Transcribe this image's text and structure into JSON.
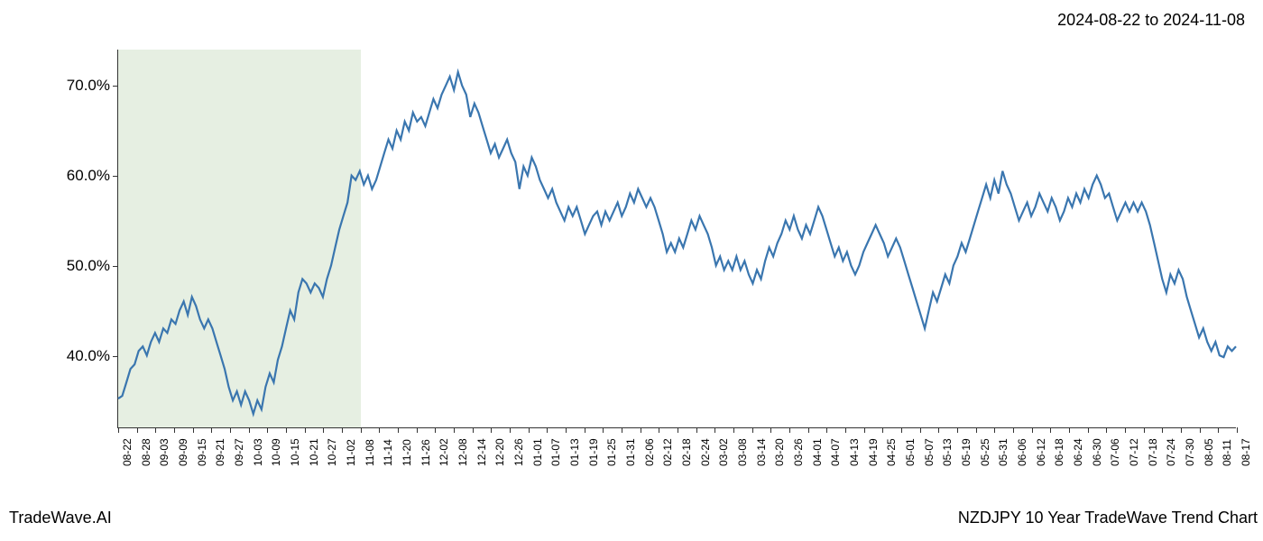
{
  "header": {
    "date_range": "2024-08-22 to 2024-11-08"
  },
  "footer": {
    "left": "TradeWave.AI",
    "right": "NZDJPY 10 Year TradeWave Trend Chart"
  },
  "chart": {
    "type": "line",
    "background_color": "#ffffff",
    "line_color": "#3a76af",
    "line_width": 2.2,
    "highlight": {
      "color": "#dce8d5",
      "opacity": 0.7,
      "x_start": "08-22",
      "x_end": "11-08"
    },
    "y_axis": {
      "min": 32,
      "max": 74,
      "ticks": [
        40.0,
        50.0,
        60.0,
        70.0
      ],
      "tick_labels": [
        "40.0%",
        "50.0%",
        "60.0%",
        "70.0%"
      ],
      "label_fontsize": 17
    },
    "x_axis": {
      "labels": [
        "08-22",
        "08-28",
        "09-03",
        "09-09",
        "09-15",
        "09-21",
        "09-27",
        "10-03",
        "10-09",
        "10-15",
        "10-21",
        "10-27",
        "11-02",
        "11-08",
        "11-14",
        "11-20",
        "11-26",
        "12-02",
        "12-08",
        "12-14",
        "12-20",
        "12-26",
        "01-01",
        "01-07",
        "01-13",
        "01-19",
        "01-25",
        "01-31",
        "02-06",
        "02-12",
        "02-18",
        "02-24",
        "03-02",
        "03-08",
        "03-14",
        "03-20",
        "03-26",
        "04-01",
        "04-07",
        "04-13",
        "04-19",
        "04-25",
        "05-01",
        "05-07",
        "05-13",
        "05-19",
        "05-25",
        "05-31",
        "06-06",
        "06-12",
        "06-18",
        "06-24",
        "06-30",
        "07-06",
        "07-12",
        "07-18",
        "07-24",
        "07-30",
        "08-05",
        "08-11",
        "08-17"
      ],
      "label_fontsize": 12,
      "rotation": -90
    },
    "data": [
      35.2,
      35.5,
      37.0,
      38.5,
      39.0,
      40.5,
      41.0,
      40.0,
      41.5,
      42.5,
      41.5,
      43.0,
      42.5,
      44.0,
      43.5,
      45.0,
      46.0,
      44.5,
      46.5,
      45.5,
      44.0,
      43.0,
      44.0,
      43.0,
      41.5,
      40.0,
      38.5,
      36.5,
      35.0,
      36.0,
      34.5,
      36.0,
      35.0,
      33.5,
      35.0,
      34.0,
      36.5,
      38.0,
      37.0,
      39.5,
      41.0,
      43.0,
      45.0,
      44.0,
      47.0,
      48.5,
      48.0,
      47.0,
      48.0,
      47.5,
      46.5,
      48.5,
      50.0,
      52.0,
      54.0,
      55.5,
      57.0,
      60.0,
      59.5,
      60.5,
      59.0,
      60.0,
      58.5,
      59.5,
      61.0,
      62.5,
      64.0,
      63.0,
      65.0,
      64.0,
      66.0,
      65.0,
      67.0,
      66.0,
      66.5,
      65.5,
      67.0,
      68.5,
      67.5,
      69.0,
      70.0,
      71.0,
      69.5,
      71.5,
      70.0,
      69.0,
      66.5,
      68.0,
      67.0,
      65.5,
      64.0,
      62.5,
      63.5,
      62.0,
      63.0,
      64.0,
      62.5,
      61.5,
      58.5,
      61.0,
      60.0,
      62.0,
      61.0,
      59.5,
      58.5,
      57.5,
      58.5,
      57.0,
      56.0,
      55.0,
      56.5,
      55.5,
      56.5,
      55.0,
      53.5,
      54.5,
      55.5,
      56.0,
      54.5,
      56.0,
      55.0,
      56.0,
      57.0,
      55.5,
      56.5,
      58.0,
      57.0,
      58.5,
      57.5,
      56.5,
      57.5,
      56.5,
      55.0,
      53.5,
      51.5,
      52.5,
      51.5,
      53.0,
      52.0,
      53.5,
      55.0,
      54.0,
      55.5,
      54.5,
      53.5,
      52.0,
      50.0,
      51.0,
      49.5,
      50.5,
      49.5,
      51.0,
      49.5,
      50.5,
      49.0,
      48.0,
      49.5,
      48.5,
      50.5,
      52.0,
      51.0,
      52.5,
      53.5,
      55.0,
      54.0,
      55.5,
      54.0,
      53.0,
      54.5,
      53.5,
      55.0,
      56.5,
      55.5,
      54.0,
      52.5,
      51.0,
      52.0,
      50.5,
      51.5,
      50.0,
      49.0,
      50.0,
      51.5,
      52.5,
      53.5,
      54.5,
      53.5,
      52.5,
      51.0,
      52.0,
      53.0,
      52.0,
      50.5,
      49.0,
      47.5,
      46.0,
      44.5,
      43.0,
      45.0,
      47.0,
      46.0,
      47.5,
      49.0,
      48.0,
      50.0,
      51.0,
      52.5,
      51.5,
      53.0,
      54.5,
      56.0,
      57.5,
      59.0,
      57.5,
      59.5,
      58.0,
      60.5,
      59.0,
      58.0,
      56.5,
      55.0,
      56.0,
      57.0,
      55.5,
      56.5,
      58.0,
      57.0,
      56.0,
      57.5,
      56.5,
      55.0,
      56.0,
      57.5,
      56.5,
      58.0,
      57.0,
      58.5,
      57.5,
      59.0,
      60.0,
      59.0,
      57.5,
      58.0,
      56.5,
      55.0,
      56.0,
      57.0,
      56.0,
      57.0,
      56.0,
      57.0,
      56.0,
      54.5,
      52.5,
      50.5,
      48.5,
      47.0,
      49.0,
      48.0,
      49.5,
      48.5,
      46.5,
      45.0,
      43.5,
      42.0,
      43.0,
      41.5,
      40.5,
      41.5,
      40.0,
      39.8,
      41.0,
      40.5,
      41.0
    ]
  }
}
